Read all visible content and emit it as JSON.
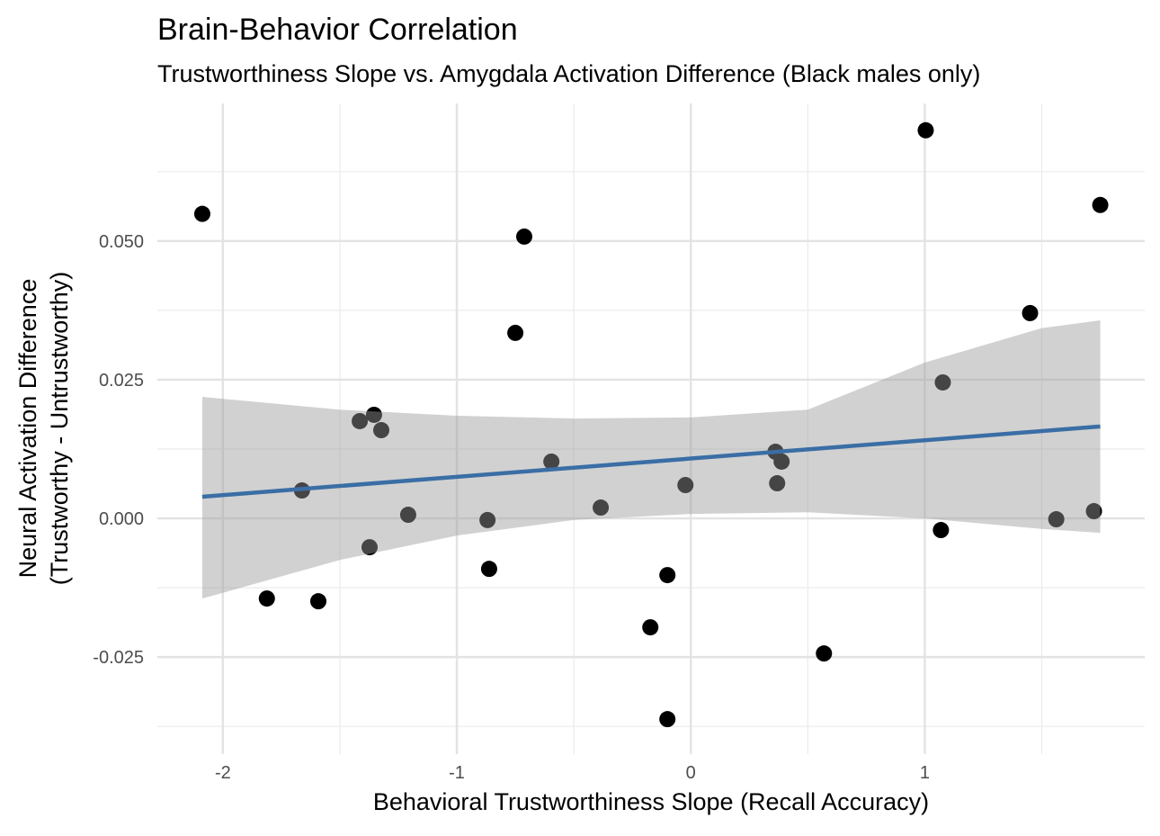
{
  "chart_data": {
    "type": "scatter",
    "title": "Brain-Behavior Correlation",
    "subtitle": "Trustworthiness Slope vs. Amygdala Activation Difference (Black males only)",
    "xlabel": "Behavioral Trustworthiness Slope (Recall Accuracy)",
    "ylabel": [
      "Neural Activation Difference",
      "(Trustworthy - Untrustworthy)"
    ],
    "xlim": [
      -2.28,
      1.94
    ],
    "ylim": [
      -0.0425,
      0.0748
    ],
    "xticks": [
      -2,
      -1,
      0,
      1
    ],
    "yticks": [
      {
        "value": -0.025,
        "label": "-0.025"
      },
      {
        "value": 0,
        "label": "0.000"
      },
      {
        "value": 0.025,
        "label": "0.025"
      },
      {
        "value": 0.05,
        "label": "0.050"
      }
    ],
    "x_minor_ticks": [
      -1.5,
      -0.5,
      0.5,
      1.5
    ],
    "y_minor_ticks": [
      -0.0375,
      -0.0125,
      0.0125,
      0.0375,
      0.0625
    ],
    "grid": true,
    "point_color": "#000000",
    "x": [
      -2.088,
      -1.812,
      -1.662,
      -1.592,
      -1.415,
      -1.373,
      -1.354,
      -1.323,
      -1.208,
      -0.869,
      -0.862,
      -0.75,
      -0.712,
      -0.596,
      -0.385,
      -0.173,
      -0.1,
      -0.1,
      -0.023,
      0.362,
      0.369,
      0.388,
      0.569,
      1.004,
      1.069,
      1.077,
      1.45,
      1.562,
      1.723,
      1.75
    ],
    "values": [
      0.0549,
      -0.01445,
      0.00503,
      -0.01494,
      0.01753,
      -0.0052,
      0.01867,
      0.0159,
      0.00065,
      -0.0003,
      -0.0091,
      0.03344,
      0.0508,
      0.01023,
      0.00195,
      -0.01964,
      -0.01023,
      -0.0362,
      0.006,
      0.01201,
      0.00633,
      0.01023,
      -0.02435,
      0.06997,
      -0.00211,
      0.02451,
      0.03701,
      -0.00016,
      0.0013,
      0.0565
    ],
    "fit": {
      "color": "#3a6ea5",
      "band_color": "#999999",
      "x": [
        -2.088,
        -1.5,
        -1,
        -0.5,
        0,
        0.5,
        1,
        1.5,
        1.75
      ],
      "values": [
        0.0039,
        0.00584,
        0.00749,
        0.00914,
        0.01079,
        0.01244,
        0.01409,
        0.01574,
        0.01657
      ],
      "upper": [
        0.0219,
        0.0196,
        0.0185,
        0.018,
        0.0182,
        0.0196,
        0.0281,
        0.0343,
        0.0357
      ],
      "lower": [
        -0.01445,
        -0.0075,
        -0.0031,
        -0.0003,
        0.0008,
        0.0011,
        0,
        -0.0019,
        -0.0026
      ]
    }
  }
}
